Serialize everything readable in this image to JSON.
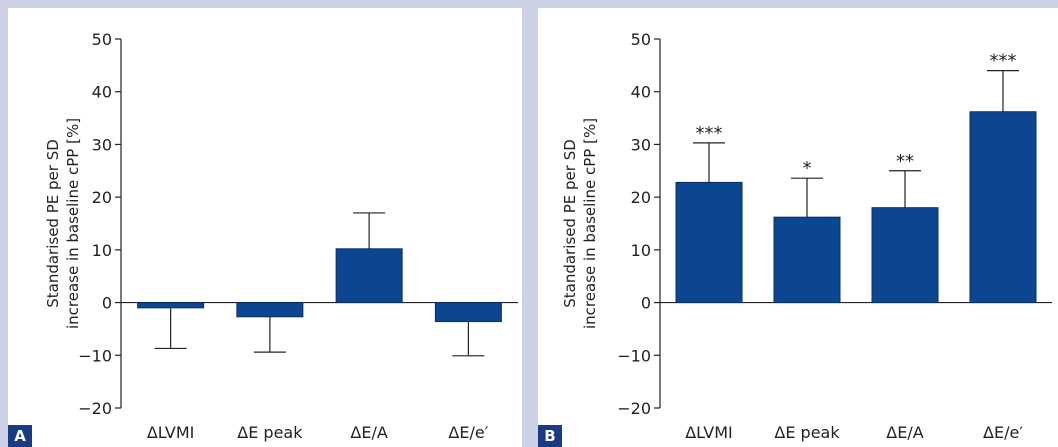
{
  "colors": {
    "bar": "#0d4690",
    "axis": "#222222",
    "background": "#cdd1e6"
  },
  "chart_data": [
    {
      "panel": "A",
      "type": "bar",
      "categories": [
        "ΔLVMI",
        "ΔE peak",
        "ΔE/A",
        "ΔE/e′"
      ],
      "values": [
        -1,
        -2.7,
        10.2,
        -3.6
      ],
      "error_bars": [
        {
          "lower": -8.7,
          "upper": -1
        },
        {
          "lower": -9.4,
          "upper": -2.7
        },
        {
          "lower": 10.2,
          "upper": 17
        },
        {
          "lower": -10.1,
          "upper": -3.6
        }
      ],
      "significance": [
        "",
        "",
        "",
        ""
      ],
      "ylabel": [
        "Standarised PE per SD",
        "increase in baseline cPP [%]"
      ],
      "ylim": [
        -20,
        50
      ],
      "yticks": [
        -20,
        -10,
        0,
        10,
        20,
        30,
        40,
        50
      ],
      "ytick_labels": [
        "−20",
        "−10",
        "0",
        "10",
        "20",
        "30",
        "40",
        "50"
      ],
      "grid": false
    },
    {
      "panel": "B",
      "type": "bar",
      "categories": [
        "ΔLVMI",
        "ΔE peak",
        "ΔE/A",
        "ΔE/e′"
      ],
      "values": [
        22.8,
        16.2,
        18,
        36.2
      ],
      "error_bars": [
        {
          "lower": 22.8,
          "upper": 30.3
        },
        {
          "lower": 16.2,
          "upper": 23.6
        },
        {
          "lower": 18,
          "upper": 25
        },
        {
          "lower": 36.2,
          "upper": 44
        }
      ],
      "significance": [
        "***",
        "*",
        "**",
        "***"
      ],
      "ylabel": [
        "Standarised PE per SD",
        "increase in baseline cPP [%]"
      ],
      "ylim": [
        -20,
        50
      ],
      "yticks": [
        -20,
        -10,
        0,
        10,
        20,
        30,
        40,
        50
      ],
      "ytick_labels": [
        "−20",
        "−10",
        "0",
        "10",
        "20",
        "30",
        "40",
        "50"
      ],
      "grid": false
    }
  ]
}
